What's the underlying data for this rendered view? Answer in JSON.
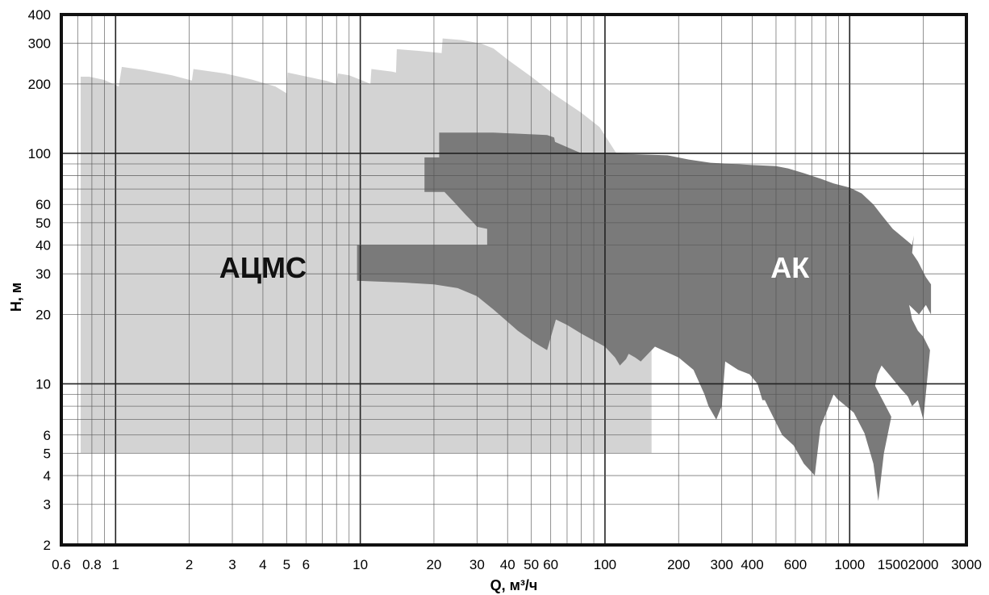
{
  "chart_data": {
    "type": "area",
    "xlabel": "Q, м³/ч",
    "ylabel": "H, м",
    "x_scale": "log",
    "y_scale": "log",
    "xlim": [
      0.6,
      3000
    ],
    "ylim": [
      2,
      400
    ],
    "grid": true,
    "x_ticks": [
      {
        "value": 0.6,
        "label": "0.6"
      },
      {
        "value": 0.8,
        "label": "0.8"
      },
      {
        "value": 1,
        "label": "1"
      },
      {
        "value": 2,
        "label": "2"
      },
      {
        "value": 3,
        "label": "3"
      },
      {
        "value": 4,
        "label": "4"
      },
      {
        "value": 5,
        "label": "5"
      },
      {
        "value": 6,
        "label": "6"
      },
      {
        "value": 10,
        "label": "10"
      },
      {
        "value": 20,
        "label": "20"
      },
      {
        "value": 30,
        "label": "30"
      },
      {
        "value": 40,
        "label": "40"
      },
      {
        "value": 50,
        "label": "50"
      },
      {
        "value": 60,
        "label": "60"
      },
      {
        "value": 100,
        "label": "100"
      },
      {
        "value": 200,
        "label": "200"
      },
      {
        "value": 300,
        "label": "300"
      },
      {
        "value": 400,
        "label": "400"
      },
      {
        "value": 600,
        "label": "600"
      },
      {
        "value": 1000,
        "label": "1000"
      },
      {
        "value": 1500,
        "label": "1500"
      },
      {
        "value": 2000,
        "label": "2000"
      },
      {
        "value": 3000,
        "label": "3000"
      }
    ],
    "y_ticks": [
      {
        "value": 2,
        "label": "2"
      },
      {
        "value": 3,
        "label": "3"
      },
      {
        "value": 4,
        "label": "4"
      },
      {
        "value": 5,
        "label": "5"
      },
      {
        "value": 6,
        "label": "6"
      },
      {
        "value": 10,
        "label": "10"
      },
      {
        "value": 20,
        "label": "20"
      },
      {
        "value": 30,
        "label": "30"
      },
      {
        "value": 40,
        "label": "40"
      },
      {
        "value": 50,
        "label": "50"
      },
      {
        "value": 60,
        "label": "60"
      },
      {
        "value": 100,
        "label": "100"
      },
      {
        "value": 200,
        "label": "200"
      },
      {
        "value": 300,
        "label": "300"
      },
      {
        "value": 400,
        "label": "400"
      }
    ],
    "x_grid_lines": [
      0.7,
      0.8,
      0.9,
      1,
      2,
      3,
      4,
      5,
      6,
      7,
      8,
      9,
      10,
      20,
      30,
      40,
      50,
      60,
      70,
      80,
      90,
      100,
      200,
      300,
      400,
      500,
      600,
      700,
      800,
      900,
      1000,
      2000
    ],
    "y_grid_lines": [
      3,
      4,
      5,
      6,
      7,
      8,
      9,
      10,
      20,
      30,
      40,
      50,
      60,
      70,
      80,
      90,
      100,
      200,
      300
    ],
    "x_major_grid": [
      1,
      10,
      100,
      1000
    ],
    "y_major_grid": [
      10,
      100
    ],
    "series": [
      {
        "name": "АЦМС",
        "color": "#d3d3d3",
        "label_at": {
          "x": 4,
          "y": 32
        },
        "label_color": "#111111",
        "polygon": [
          [
            0.72,
            5
          ],
          [
            0.72,
            215
          ],
          [
            0.78,
            215
          ],
          [
            0.9,
            208
          ],
          [
            1.03,
            195
          ],
          [
            1.06,
            237
          ],
          [
            1.3,
            230
          ],
          [
            1.7,
            218
          ],
          [
            2.05,
            207
          ],
          [
            2.08,
            232
          ],
          [
            2.8,
            222
          ],
          [
            3.6,
            209
          ],
          [
            4.5,
            195
          ],
          [
            5.0,
            182
          ],
          [
            5.05,
            224
          ],
          [
            6.2,
            214
          ],
          [
            7.3,
            206
          ],
          [
            8.0,
            200
          ],
          [
            8.1,
            222
          ],
          [
            9.0,
            218
          ],
          [
            10.2,
            207
          ],
          [
            11.0,
            200
          ],
          [
            11.1,
            232
          ],
          [
            13.5,
            226
          ],
          [
            14.0,
            224
          ],
          [
            14.1,
            283
          ],
          [
            17.5,
            278
          ],
          [
            21.5,
            272
          ],
          [
            21.7,
            315
          ],
          [
            26,
            310
          ],
          [
            31,
            300
          ],
          [
            35,
            285
          ],
          [
            40,
            255
          ],
          [
            50,
            215
          ],
          [
            62,
            180
          ],
          [
            80,
            150
          ],
          [
            95,
            130
          ],
          [
            110,
            102
          ],
          [
            125,
            85
          ],
          [
            140,
            70
          ],
          [
            155,
            60
          ],
          [
            155,
            5
          ]
        ]
      },
      {
        "name": "АК",
        "color": "#7a7a7a",
        "label_at": {
          "x": 570,
          "y": 32
        },
        "label_color": "#ffffff",
        "polygon": [
          [
            9.7,
            40
          ],
          [
            33,
            40
          ],
          [
            33,
            47
          ],
          [
            30,
            48
          ],
          [
            29,
            50
          ],
          [
            27,
            54
          ],
          [
            24,
            62
          ],
          [
            21.5,
            70
          ],
          [
            22.5,
            68
          ],
          [
            20,
            68
          ],
          [
            18.3,
            68
          ],
          [
            18.3,
            96
          ],
          [
            21,
            96
          ],
          [
            21,
            123
          ],
          [
            35,
            123
          ],
          [
            58,
            120
          ],
          [
            62,
            117
          ],
          [
            62.5,
            112
          ],
          [
            80,
            100
          ],
          [
            100,
            100
          ],
          [
            180,
            98
          ],
          [
            220,
            94
          ],
          [
            270,
            91
          ],
          [
            330,
            90
          ],
          [
            400,
            89
          ],
          [
            500,
            88
          ],
          [
            560,
            86
          ],
          [
            650,
            82
          ],
          [
            750,
            78
          ],
          [
            860,
            74
          ],
          [
            1000,
            71
          ],
          [
            1120,
            67
          ],
          [
            1250,
            60
          ],
          [
            1350,
            54
          ],
          [
            1500,
            47
          ],
          [
            1800,
            40
          ],
          [
            1830,
            44
          ],
          [
            1800,
            37
          ],
          [
            1900,
            34
          ],
          [
            2050,
            29
          ],
          [
            2150,
            27
          ],
          [
            2150,
            20
          ],
          [
            2050,
            22
          ],
          [
            1920,
            20
          ],
          [
            1750,
            22
          ],
          [
            1800,
            19
          ],
          [
            1900,
            17
          ],
          [
            2000,
            16
          ],
          [
            2130,
            14
          ],
          [
            2000,
            7
          ],
          [
            1900,
            8.5
          ],
          [
            1800,
            8
          ],
          [
            1730,
            8.8
          ],
          [
            1620,
            9.5
          ],
          [
            1500,
            10.5
          ],
          [
            1350,
            12
          ],
          [
            1300,
            11
          ],
          [
            1270,
            9.8
          ],
          [
            1480,
            7.2
          ],
          [
            1380,
            5
          ],
          [
            1310,
            3.1
          ],
          [
            1250,
            4.5
          ],
          [
            1150,
            6.1
          ],
          [
            1040,
            7.5
          ],
          [
            890,
            8.6
          ],
          [
            860,
            9
          ],
          [
            760,
            6.5
          ],
          [
            720,
            4
          ],
          [
            650,
            4.5
          ],
          [
            590,
            5.4
          ],
          [
            530,
            6
          ],
          [
            480,
            7.4
          ],
          [
            450,
            8.5
          ],
          [
            440,
            8.5
          ],
          [
            420,
            10
          ],
          [
            390,
            11
          ],
          [
            350,
            11.5
          ],
          [
            310,
            12.5
          ],
          [
            300,
            8
          ],
          [
            285,
            7
          ],
          [
            265,
            8
          ],
          [
            255,
            9
          ],
          [
            230,
            11.5
          ],
          [
            200,
            13
          ],
          [
            172,
            14
          ],
          [
            160,
            14.5
          ],
          [
            140,
            12.5
          ],
          [
            133,
            13
          ],
          [
            125,
            13.5
          ],
          [
            122,
            12.8
          ],
          [
            115,
            12
          ],
          [
            110,
            13
          ],
          [
            100,
            14.5
          ],
          [
            80,
            16.5
          ],
          [
            70,
            18
          ],
          [
            63,
            19
          ],
          [
            58,
            14
          ],
          [
            52,
            15
          ],
          [
            44,
            17
          ],
          [
            35,
            21
          ],
          [
            30,
            24
          ],
          [
            25,
            26
          ],
          [
            20,
            27
          ],
          [
            15,
            27.5
          ],
          [
            9.7,
            28
          ]
        ]
      }
    ]
  }
}
